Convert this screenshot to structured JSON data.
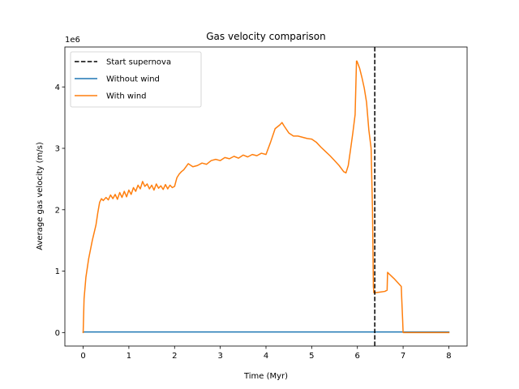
{
  "chart_data": {
    "type": "line",
    "title": "Gas velocity comparison",
    "xlabel": "Time (Myr)",
    "ylabel": "Average gas velocity (m/s)",
    "y_offset_label": "1e6",
    "y_scale_factor": 1000000,
    "xlim": [
      -0.4,
      8.4
    ],
    "ylim": [
      -0.22,
      4.65
    ],
    "xticks": [
      0,
      1,
      2,
      3,
      4,
      5,
      6,
      7,
      8
    ],
    "yticks": [
      0,
      1,
      2,
      3,
      4
    ],
    "grid": false,
    "legend_position": "upper-left",
    "vline": {
      "name": "Start supernova",
      "x": 6.38,
      "color": "#000000",
      "style": "dashed"
    },
    "series": [
      {
        "name": "Without wind",
        "color": "#1f77b4",
        "x": [
          0,
          8
        ],
        "y": [
          0.01,
          0.01
        ]
      },
      {
        "name": "With wind",
        "color": "#ff7f0e",
        "x": [
          0,
          0.02,
          0.06,
          0.12,
          0.2,
          0.28,
          0.32,
          0.36,
          0.4,
          0.44,
          0.5,
          0.55,
          0.6,
          0.65,
          0.7,
          0.75,
          0.8,
          0.85,
          0.9,
          0.95,
          1.0,
          1.05,
          1.1,
          1.15,
          1.2,
          1.25,
          1.3,
          1.35,
          1.4,
          1.45,
          1.5,
          1.55,
          1.6,
          1.65,
          1.7,
          1.75,
          1.8,
          1.85,
          1.9,
          1.95,
          2.0,
          2.05,
          2.1,
          2.15,
          2.2,
          2.3,
          2.4,
          2.5,
          2.6,
          2.7,
          2.8,
          2.9,
          3.0,
          3.1,
          3.2,
          3.3,
          3.4,
          3.5,
          3.6,
          3.7,
          3.8,
          3.9,
          4.0,
          4.1,
          4.2,
          4.3,
          4.35,
          4.4,
          4.5,
          4.6,
          4.7,
          4.8,
          4.9,
          5.0,
          5.1,
          5.2,
          5.3,
          5.4,
          5.5,
          5.6,
          5.7,
          5.75,
          5.8,
          5.85,
          5.9,
          5.95,
          5.98,
          5.99,
          6.0,
          6.05,
          6.1,
          6.15,
          6.2,
          6.25,
          6.3,
          6.33,
          6.35,
          6.36,
          6.38,
          6.4,
          6.5,
          6.6,
          6.65,
          6.66,
          6.7,
          6.8,
          6.9,
          6.96,
          6.97,
          6.99,
          7.0,
          7.5,
          8.0
        ],
        "y": [
          0.0,
          0.55,
          0.9,
          1.2,
          1.5,
          1.75,
          1.95,
          2.12,
          2.18,
          2.15,
          2.2,
          2.16,
          2.24,
          2.18,
          2.25,
          2.17,
          2.28,
          2.2,
          2.3,
          2.21,
          2.32,
          2.25,
          2.36,
          2.3,
          2.4,
          2.34,
          2.46,
          2.38,
          2.42,
          2.34,
          2.4,
          2.32,
          2.42,
          2.35,
          2.39,
          2.33,
          2.41,
          2.34,
          2.4,
          2.36,
          2.38,
          2.52,
          2.58,
          2.62,
          2.65,
          2.75,
          2.7,
          2.72,
          2.76,
          2.74,
          2.8,
          2.82,
          2.8,
          2.85,
          2.83,
          2.87,
          2.84,
          2.89,
          2.86,
          2.9,
          2.88,
          2.92,
          2.9,
          3.1,
          3.32,
          3.38,
          3.42,
          3.36,
          3.25,
          3.2,
          3.2,
          3.18,
          3.16,
          3.15,
          3.1,
          3.02,
          2.95,
          2.88,
          2.8,
          2.72,
          2.62,
          2.6,
          2.72,
          2.98,
          3.25,
          3.55,
          4.42,
          4.42,
          4.4,
          4.3,
          4.15,
          3.98,
          3.75,
          3.3,
          3.0,
          2.0,
          0.75,
          0.65,
          0.64,
          0.65,
          0.66,
          0.67,
          0.69,
          0.98,
          0.95,
          0.88,
          0.8,
          0.75,
          0.55,
          0.2,
          0.0,
          0.0,
          0.0
        ]
      }
    ]
  }
}
